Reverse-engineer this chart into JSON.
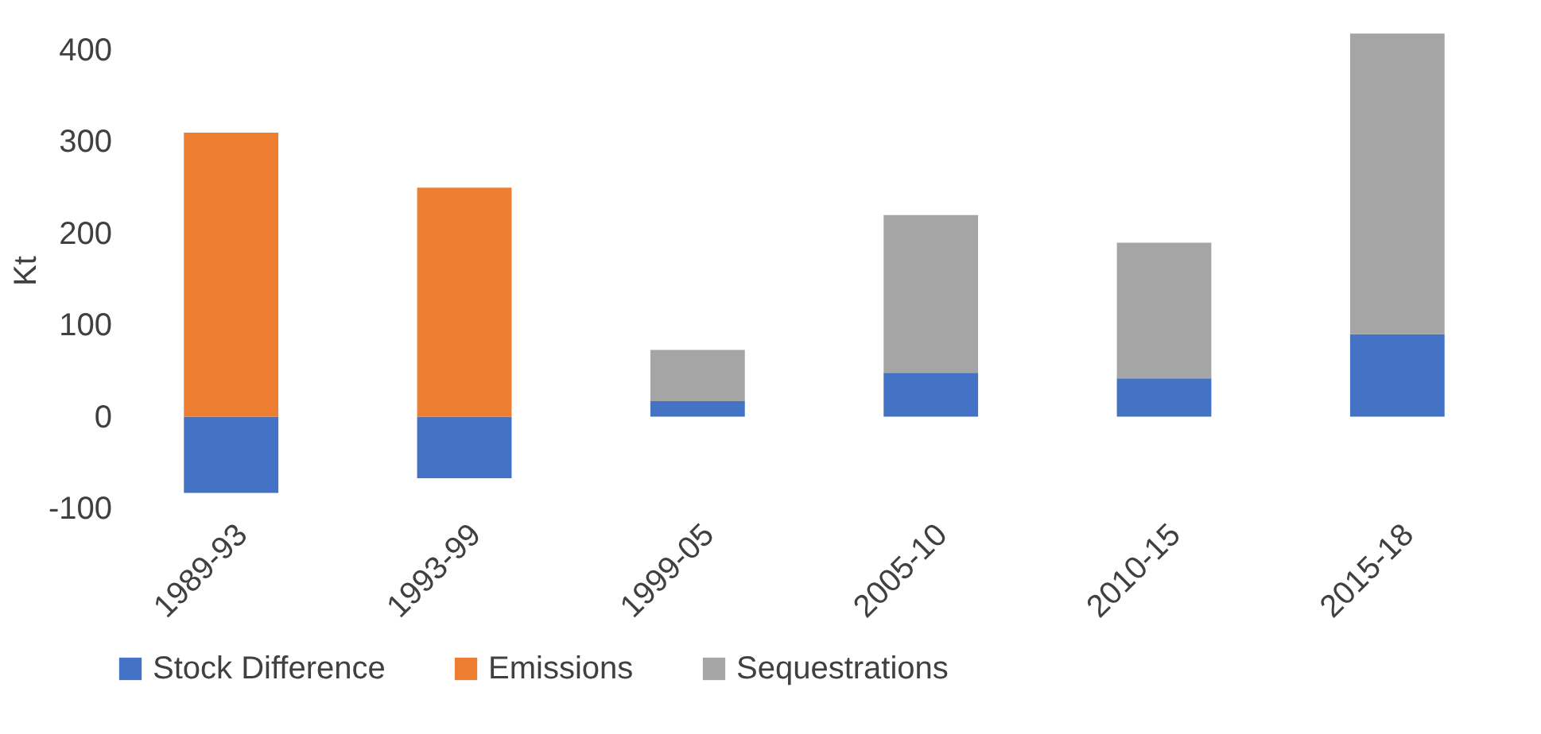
{
  "chart_data": {
    "type": "bar",
    "stacked": true,
    "ylabel": "Kt",
    "categories": [
      "1989-93",
      "1993-99",
      "1999-05",
      "2005-10",
      "2010-15",
      "2015-18"
    ],
    "series": [
      {
        "name": "Stock Difference",
        "color": "#4472c4",
        "values": [
          -83,
          -67,
          17,
          48,
          42,
          90
        ]
      },
      {
        "name": "Emissions",
        "color": "#ed7d31",
        "values": [
          310,
          250,
          null,
          null,
          null,
          null
        ]
      },
      {
        "name": "Sequestrations",
        "color": "#a5a5a5",
        "values": [
          null,
          null,
          56,
          172,
          148,
          328
        ]
      }
    ],
    "ylim": [
      -100,
      420
    ],
    "yticks": [
      -100,
      0,
      100,
      200,
      300,
      400
    ],
    "legend": "bottom"
  }
}
